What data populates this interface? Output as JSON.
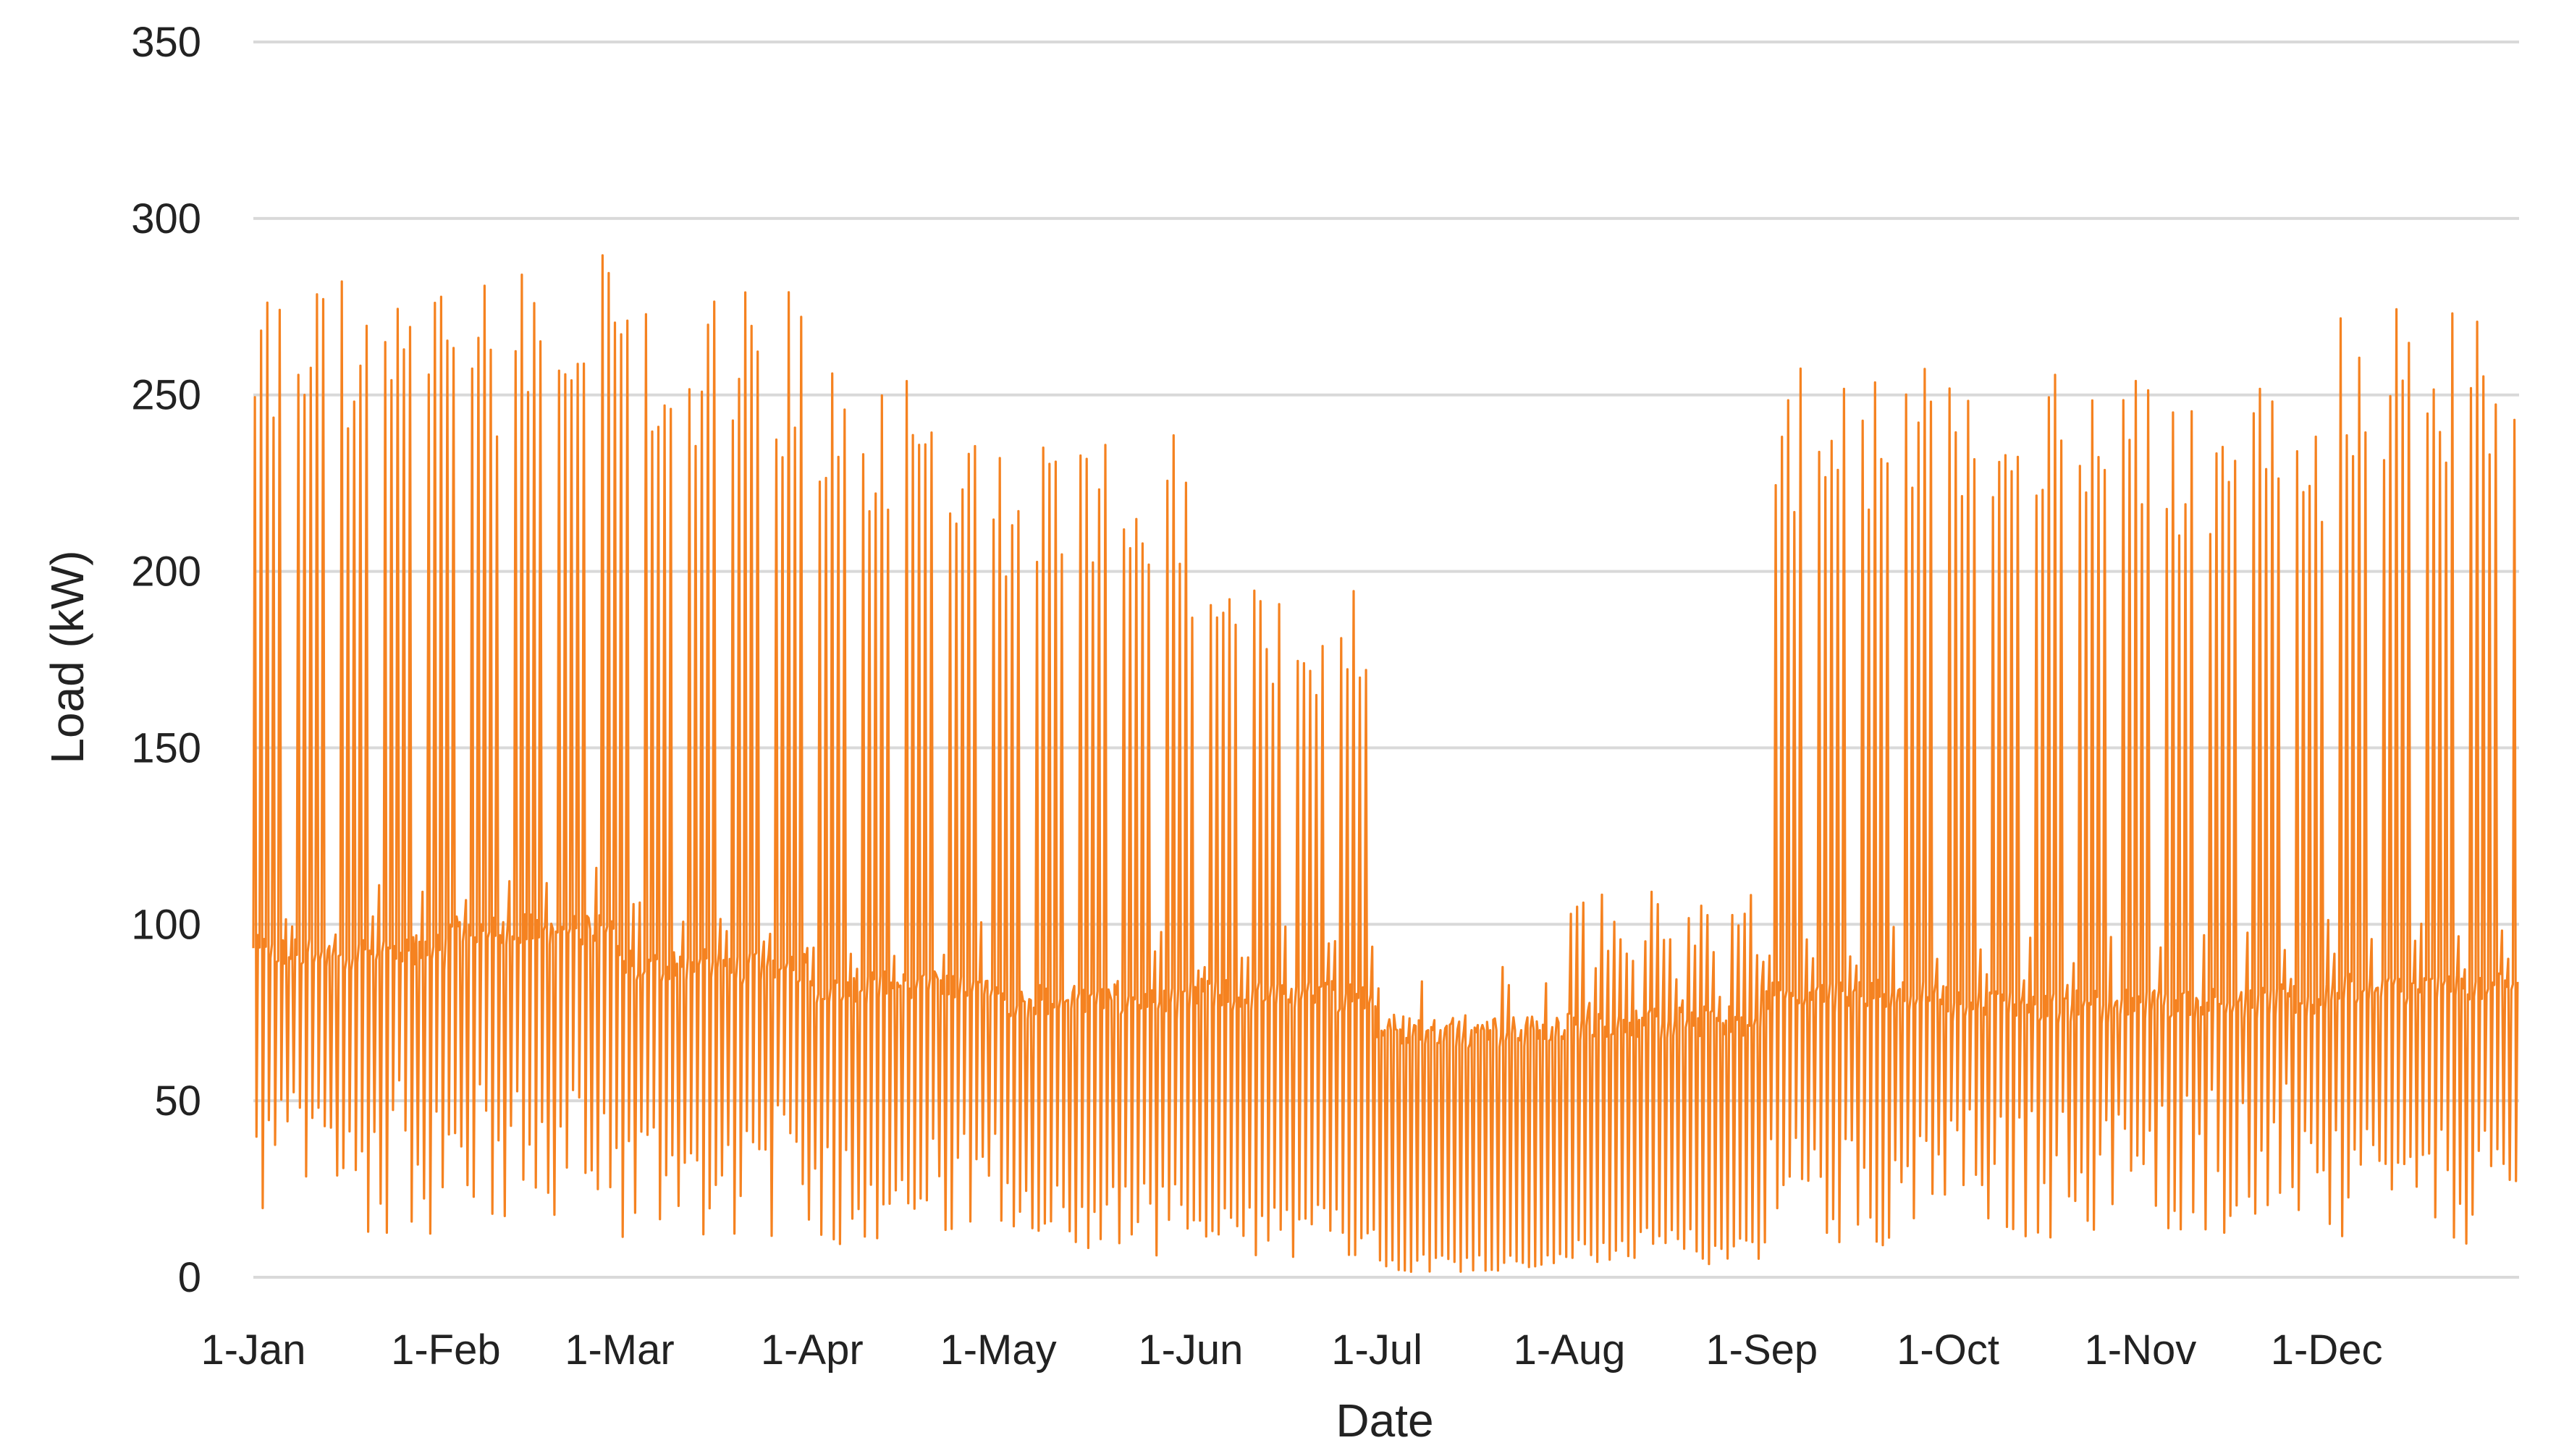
{
  "chart_data": {
    "type": "line",
    "title": "",
    "xlabel": "Date",
    "ylabel": "Load (kW)",
    "ylim": [
      0,
      350
    ],
    "yticks": [
      0,
      50,
      100,
      150,
      200,
      250,
      300,
      350
    ],
    "x_range_days": [
      1,
      365
    ],
    "xticks": [
      {
        "label": "1-Jan",
        "day": 1
      },
      {
        "label": "1-Feb",
        "day": 32
      },
      {
        "label": "1-Mar",
        "day": 60
      },
      {
        "label": "1-Apr",
        "day": 91
      },
      {
        "label": "1-May",
        "day": 121
      },
      {
        "label": "1-Jun",
        "day": 152
      },
      {
        "label": "1-Jul",
        "day": 182
      },
      {
        "label": "1-Aug",
        "day": 213
      },
      {
        "label": "1-Sep",
        "day": 244
      },
      {
        "label": "1-Oct",
        "day": 274
      },
      {
        "label": "1-Nov",
        "day": 305
      },
      {
        "label": "1-Dec",
        "day": 335
      }
    ],
    "grid": "horizontal",
    "legend": "none",
    "series": [
      {
        "color": "#f58220",
        "resolution": "hourly",
        "baseline_monthly": [
          92,
          98,
          88,
          82,
          78,
          80,
          70,
          72,
          80,
          77,
          78,
          82
        ],
        "weekday_peak_monthly": [
          285,
          290,
          280,
          260,
          240,
          200,
          75,
          110,
          260,
          265,
          255,
          280
        ],
        "night_min_monthly": [
          40,
          40,
          35,
          30,
          20,
          15,
          5,
          10,
          30,
          35,
          40,
          30
        ],
        "summary": {
          "max": 335,
          "min": 0
        }
      }
    ]
  }
}
